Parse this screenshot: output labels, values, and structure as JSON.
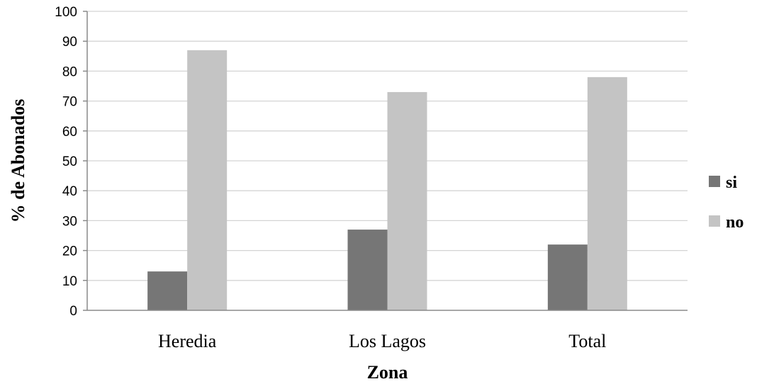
{
  "chart_data": {
    "type": "bar",
    "categories": [
      "Heredia",
      "Los Lagos",
      "Total"
    ],
    "series": [
      {
        "name": "si",
        "values": [
          13,
          27,
          22
        ],
        "color": "#767676"
      },
      {
        "name": "no",
        "values": [
          87,
          73,
          78
        ],
        "color": "#c4c4c4"
      }
    ],
    "xlabel": "Zona",
    "ylabel": "% de Abonados",
    "ylim": [
      0,
      100
    ],
    "yticks": [
      "0",
      "10",
      "20",
      "30",
      "40",
      "50",
      "60",
      "70",
      "80",
      "90",
      "100"
    ],
    "grid": true,
    "legend": "right"
  }
}
